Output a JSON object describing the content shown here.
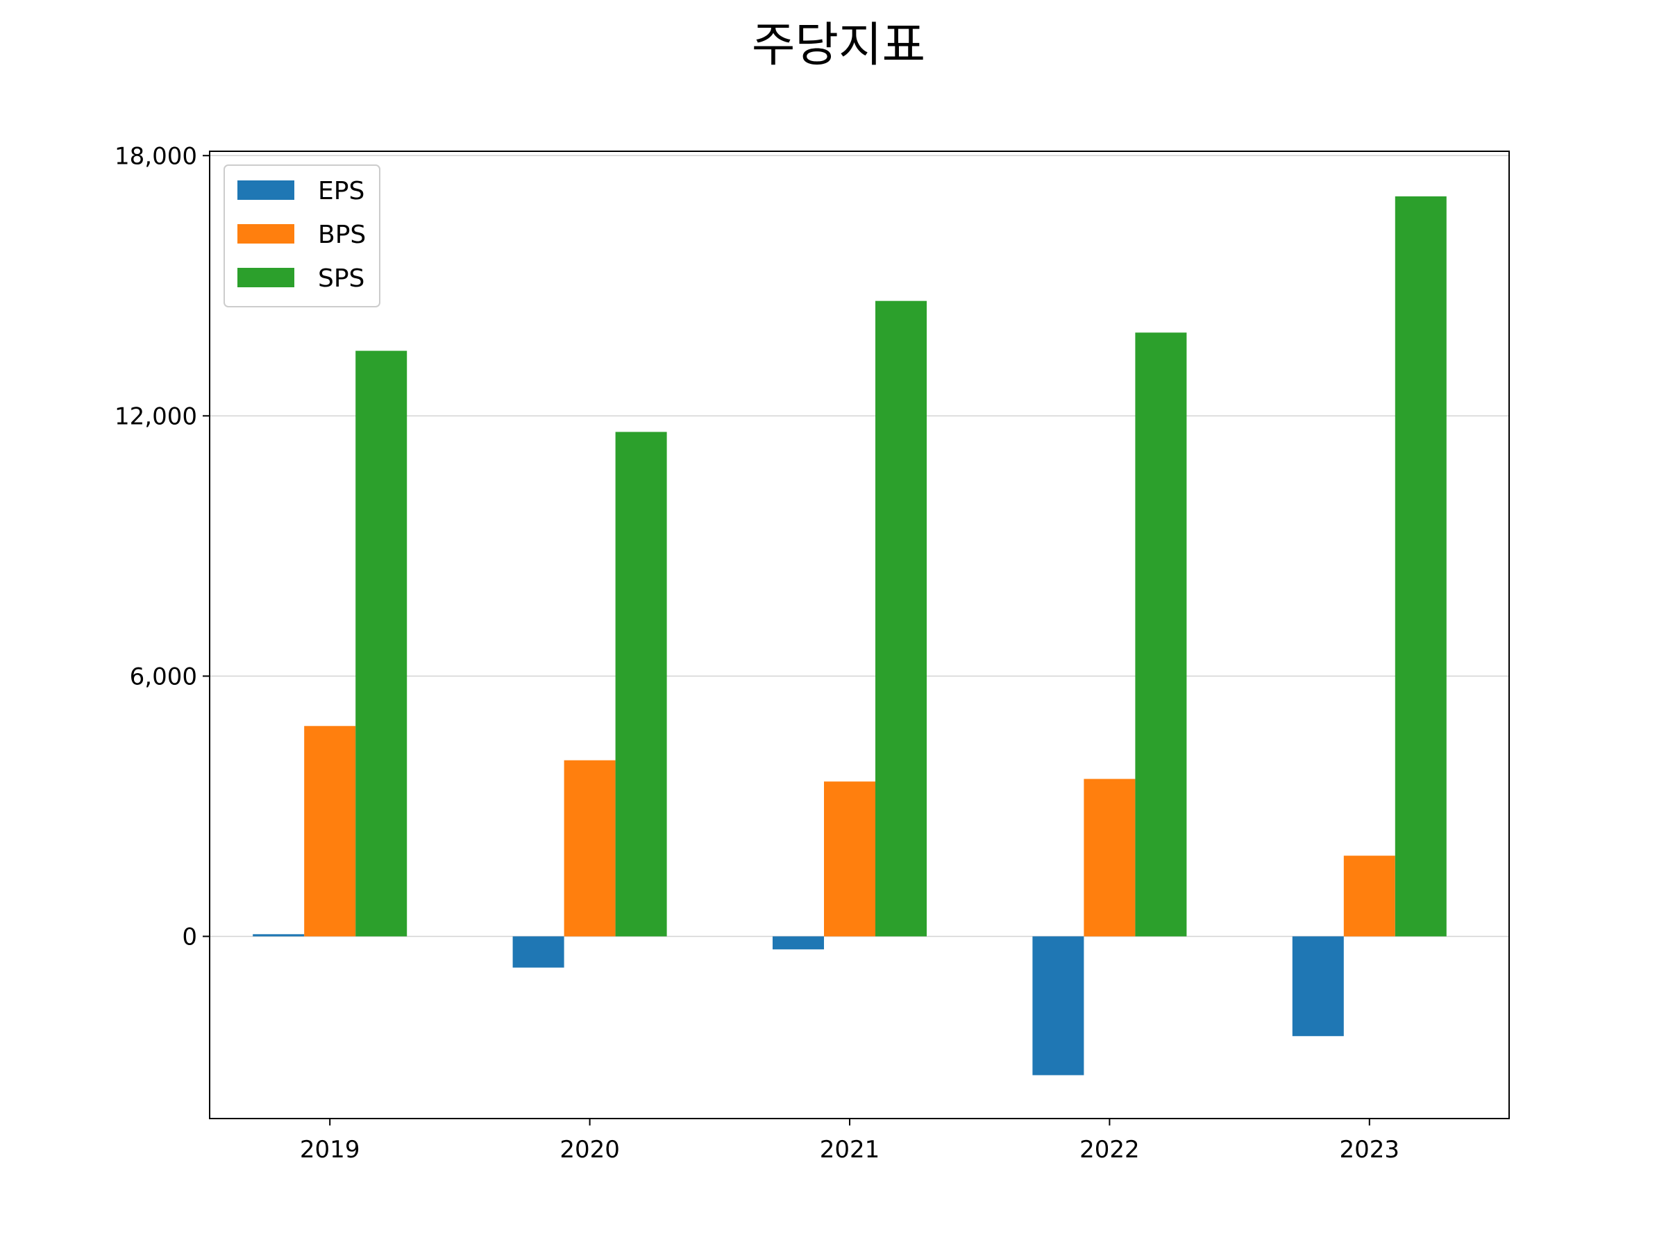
{
  "chart_data": {
    "type": "bar",
    "title": "주당지표",
    "xlabel": "",
    "ylabel": "",
    "categories": [
      "2019",
      "2020",
      "2021",
      "2022",
      "2023"
    ],
    "series": [
      {
        "name": "EPS",
        "color": "#1f77b4",
        "values": [
          50,
          -720,
          -300,
          -3200,
          -2300
        ]
      },
      {
        "name": "BPS",
        "color": "#ff7f0e",
        "values": [
          4850,
          4060,
          3570,
          3630,
          1860
        ]
      },
      {
        "name": "SPS",
        "color": "#2ca02c",
        "values": [
          13500,
          11630,
          14650,
          13920,
          17060
        ]
      }
    ],
    "ylim": [
      -4200,
      18100
    ],
    "yticks": [
      0,
      6000,
      12000,
      18000
    ],
    "ytick_labels": [
      "0",
      "6,000",
      "12,000",
      "18,000"
    ],
    "grid": "horizontal",
    "legend_position": "top-left"
  }
}
